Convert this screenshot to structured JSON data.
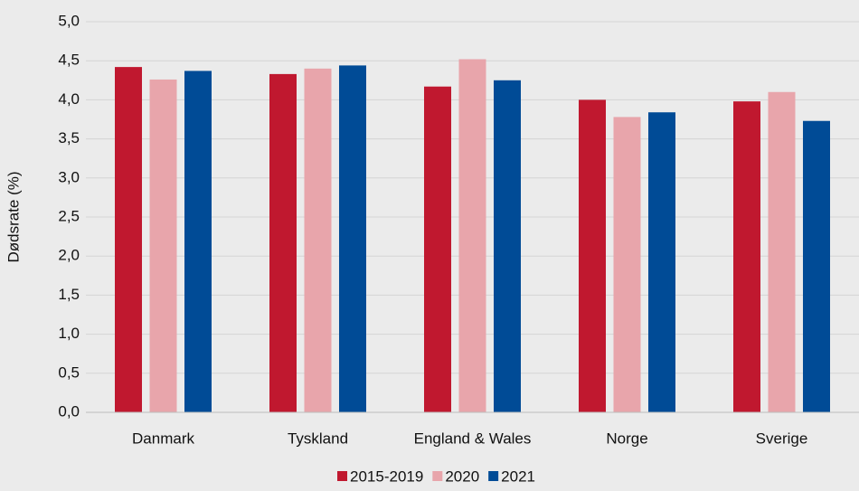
{
  "chart_data": {
    "type": "bar",
    "ylabel": "Dødsrate (%)",
    "categories": [
      "Danmark",
      "Tyskland",
      "England & Wales",
      "Norge",
      "Sverige"
    ],
    "series": [
      {
        "name": "2015-2019",
        "color": "#c0182f",
        "values": [
          4.42,
          4.33,
          4.17,
          4.0,
          3.98
        ]
      },
      {
        "name": "2020",
        "color": "#e8a5ab",
        "values": [
          4.26,
          4.4,
          4.52,
          3.78,
          4.1
        ]
      },
      {
        "name": "2021",
        "color": "#004b96",
        "values": [
          4.37,
          4.44,
          4.25,
          3.84,
          3.73
        ]
      }
    ],
    "ylim": [
      0,
      5
    ],
    "yticks": [
      {
        "value": 0,
        "label": "0,0"
      },
      {
        "value": 0.5,
        "label": "0,5"
      },
      {
        "value": 1,
        "label": "1,0"
      },
      {
        "value": 1.5,
        "label": "1,5"
      },
      {
        "value": 2,
        "label": "2,0"
      },
      {
        "value": 2.5,
        "label": "2,5"
      },
      {
        "value": 3,
        "label": "3,0"
      },
      {
        "value": 3.5,
        "label": "3,5"
      },
      {
        "value": 4,
        "label": "4,0"
      },
      {
        "value": 4.5,
        "label": "4,5"
      },
      {
        "value": 5,
        "label": "5,0"
      }
    ],
    "grid": true,
    "legend": "bottom"
  }
}
